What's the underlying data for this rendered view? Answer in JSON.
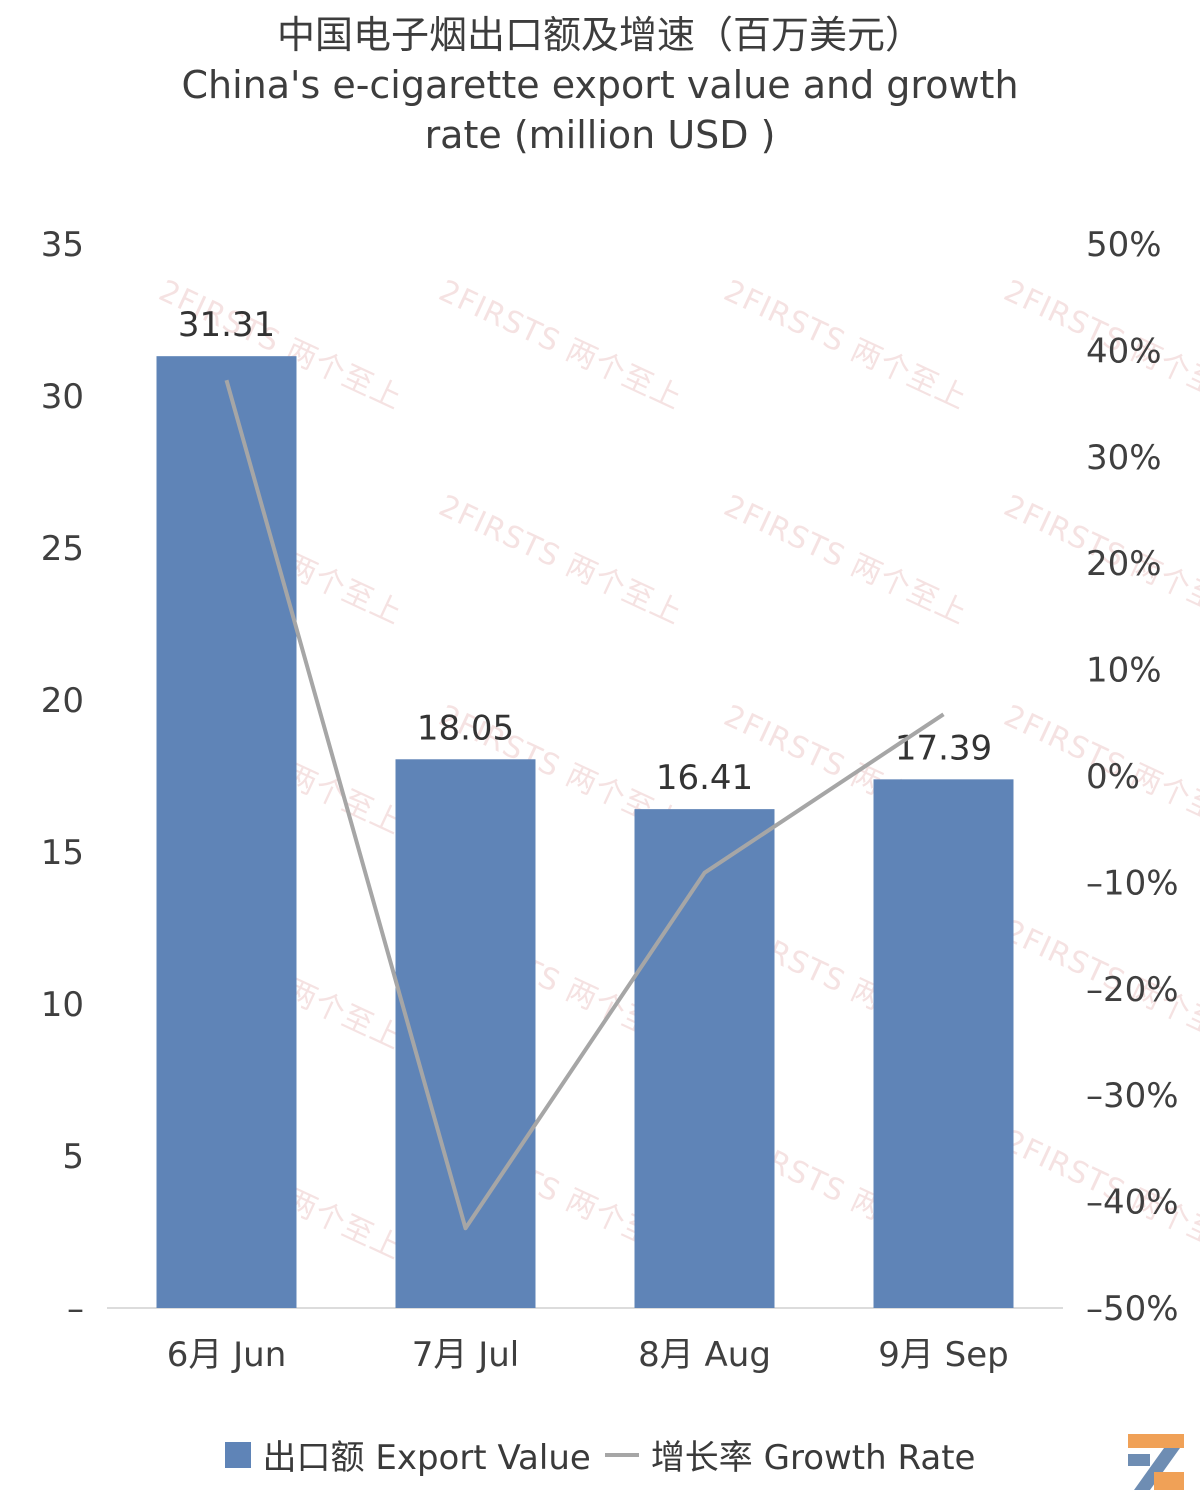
{
  "title_cn": "中国电子烟出口额及增速（百万美元）",
  "title_en_line1": "China's e-cigarette export value and growth",
  "title_en_line2": "rate (million USD )",
  "watermark_text": "2FIRSTS 两个至上",
  "colors": {
    "bar": "#5f84b7",
    "line": "#a6a6a6",
    "axis": "#d0d0d0"
  },
  "chart_data": {
    "type": "bar",
    "categories": [
      "6月 Jun",
      "7月 Jul",
      "8月 Aug",
      "9月 Sep"
    ],
    "series": [
      {
        "name": "出口额 Export Value",
        "type": "bar",
        "axis": "left",
        "values": [
          31.31,
          18.05,
          16.41,
          17.39
        ]
      },
      {
        "name": "增长率 Growth Rate",
        "type": "line",
        "axis": "right",
        "values": [
          37.2,
          -42.5,
          -9.1,
          5.8
        ]
      }
    ],
    "data_labels": [
      "31.31",
      "18.05",
      "16.41",
      "17.39"
    ],
    "left_axis": {
      "ylim": [
        0,
        35
      ],
      "ticks": [
        "–",
        "5",
        "10",
        "15",
        "20",
        "25",
        "30",
        "35"
      ]
    },
    "right_axis": {
      "ylim": [
        -50,
        50
      ],
      "ticks": [
        "–50%",
        "–40%",
        "–30%",
        "–20%",
        "–10%",
        "0%",
        "10%",
        "20%",
        "30%",
        "40%",
        "50%"
      ]
    },
    "legend_position": "bottom",
    "grid": false
  }
}
